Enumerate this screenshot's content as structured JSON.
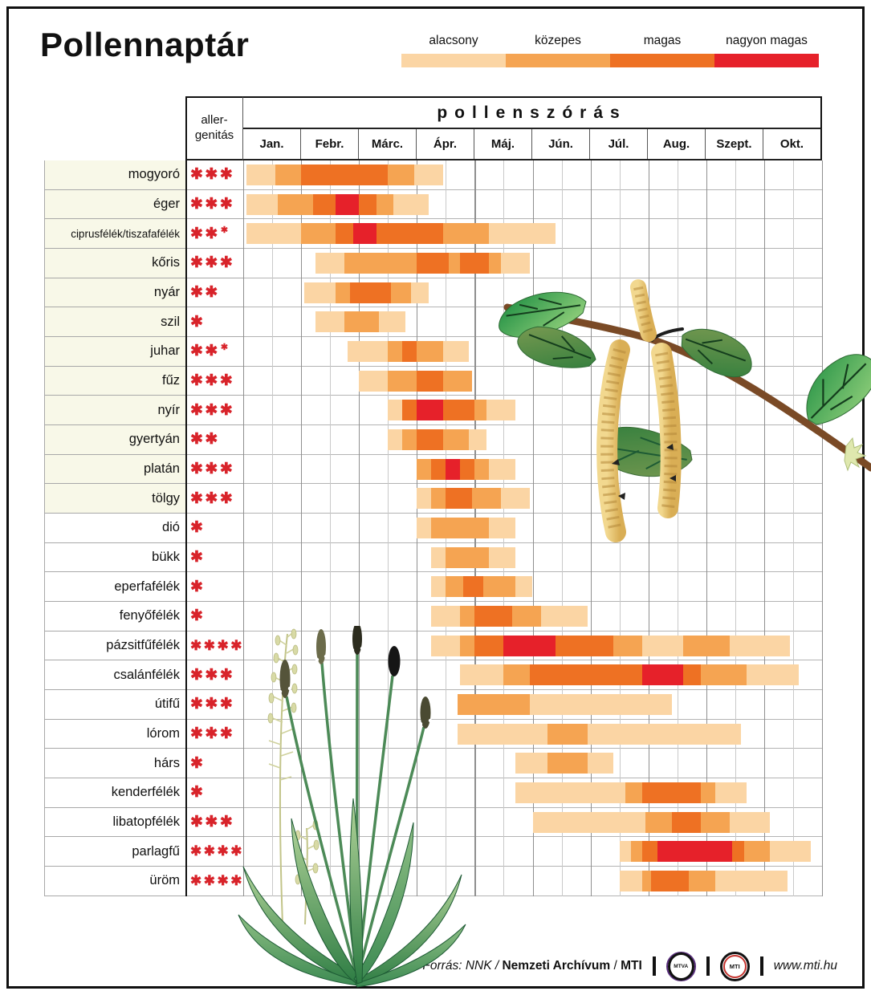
{
  "title": "Pollennaptár",
  "table": {
    "allergen_header_line1": "aller-",
    "allergen_header_line2": "genitás",
    "main_header": "pollenszórás"
  },
  "chart_data": {
    "type": "heatmap",
    "description": "Pollen calendar gantt-heatmap; segments are [start_month, end_month, level] with 0 = Jan 1, 10 = end of Oct",
    "months": [
      "Jan.",
      "Febr.",
      "Márc.",
      "Ápr.",
      "Máj.",
      "Jún.",
      "Júl.",
      "Aug.",
      "Szept.",
      "Okt."
    ],
    "levels": [
      {
        "value": 1,
        "label": "alacsony",
        "color": "#fbd5a4"
      },
      {
        "value": 2,
        "label": "közepes",
        "color": "#f5a452"
      },
      {
        "value": 3,
        "label": "magas",
        "color": "#ee7123"
      },
      {
        "value": 4,
        "label": "nagyon magas",
        "color": "#e6212a"
      }
    ],
    "rows": [
      {
        "name": "mogyoró",
        "stars": 3,
        "segments": [
          [
            0.05,
            0.55,
            1
          ],
          [
            0.55,
            1.0,
            2
          ],
          [
            1.0,
            2.5,
            3
          ],
          [
            2.5,
            2.95,
            2
          ],
          [
            2.95,
            3.45,
            1
          ]
        ]
      },
      {
        "name": "éger",
        "stars": 3,
        "segments": [
          [
            0.05,
            0.6,
            1
          ],
          [
            0.6,
            1.2,
            2
          ],
          [
            1.2,
            1.6,
            3
          ],
          [
            1.6,
            2.0,
            4
          ],
          [
            2.0,
            2.3,
            3
          ],
          [
            2.3,
            2.6,
            2
          ],
          [
            2.6,
            3.2,
            1
          ]
        ]
      },
      {
        "name": "ciprusfélék/tiszafafélék",
        "stars": 2.5,
        "segments": [
          [
            0.05,
            1.0,
            1
          ],
          [
            1.0,
            1.6,
            2
          ],
          [
            1.6,
            1.9,
            3
          ],
          [
            1.9,
            2.3,
            4
          ],
          [
            2.3,
            3.45,
            3
          ],
          [
            3.45,
            4.25,
            2
          ],
          [
            4.25,
            5.4,
            1
          ]
        ]
      },
      {
        "name": "kőris",
        "stars": 3,
        "segments": [
          [
            1.25,
            1.75,
            1
          ],
          [
            1.75,
            3.0,
            2
          ],
          [
            3.0,
            3.55,
            3
          ],
          [
            3.55,
            3.75,
            2
          ],
          [
            3.75,
            4.25,
            3
          ],
          [
            4.25,
            4.45,
            2
          ],
          [
            4.45,
            4.95,
            1
          ]
        ]
      },
      {
        "name": "nyár",
        "stars": 2,
        "segments": [
          [
            1.05,
            1.6,
            1
          ],
          [
            1.6,
            1.85,
            2
          ],
          [
            1.85,
            2.55,
            3
          ],
          [
            2.55,
            2.9,
            2
          ],
          [
            2.9,
            3.2,
            1
          ]
        ]
      },
      {
        "name": "szil",
        "stars": 1,
        "segments": [
          [
            1.25,
            1.75,
            1
          ],
          [
            1.75,
            2.35,
            2
          ],
          [
            2.35,
            2.8,
            1
          ]
        ]
      },
      {
        "name": "juhar",
        "stars": 2.5,
        "segments": [
          [
            1.8,
            2.5,
            1
          ],
          [
            2.5,
            2.75,
            2
          ],
          [
            2.75,
            3.0,
            3
          ],
          [
            3.0,
            3.45,
            2
          ],
          [
            3.45,
            3.9,
            1
          ]
        ]
      },
      {
        "name": "fűz",
        "stars": 3,
        "segments": [
          [
            2.0,
            2.5,
            1
          ],
          [
            2.5,
            3.0,
            2
          ],
          [
            3.0,
            3.45,
            3
          ],
          [
            3.45,
            3.95,
            2
          ]
        ]
      },
      {
        "name": "nyír",
        "stars": 3,
        "segments": [
          [
            2.5,
            2.75,
            1
          ],
          [
            2.75,
            3.0,
            3
          ],
          [
            3.0,
            3.45,
            4
          ],
          [
            3.45,
            4.0,
            3
          ],
          [
            4.0,
            4.2,
            2
          ],
          [
            4.2,
            4.7,
            1
          ]
        ]
      },
      {
        "name": "gyertyán",
        "stars": 2,
        "segments": [
          [
            2.5,
            2.75,
            1
          ],
          [
            2.75,
            3.0,
            2
          ],
          [
            3.0,
            3.45,
            3
          ],
          [
            3.45,
            3.9,
            2
          ],
          [
            3.9,
            4.2,
            1
          ]
        ]
      },
      {
        "name": "platán",
        "stars": 3,
        "segments": [
          [
            3.0,
            3.25,
            2
          ],
          [
            3.25,
            3.5,
            3
          ],
          [
            3.5,
            3.75,
            4
          ],
          [
            3.75,
            4.0,
            3
          ],
          [
            4.0,
            4.25,
            2
          ],
          [
            4.25,
            4.7,
            1
          ]
        ]
      },
      {
        "name": "tölgy",
        "stars": 3,
        "segments": [
          [
            3.0,
            3.25,
            1
          ],
          [
            3.25,
            3.5,
            2
          ],
          [
            3.5,
            3.95,
            3
          ],
          [
            3.95,
            4.45,
            2
          ],
          [
            4.45,
            4.95,
            1
          ]
        ]
      },
      {
        "name": "dió",
        "stars": 1,
        "segments": [
          [
            3.0,
            3.25,
            1
          ],
          [
            3.25,
            4.25,
            2
          ],
          [
            4.25,
            4.7,
            1
          ]
        ]
      },
      {
        "name": "bükk",
        "stars": 1,
        "segments": [
          [
            3.25,
            3.5,
            1
          ],
          [
            3.5,
            4.25,
            2
          ],
          [
            4.25,
            4.7,
            1
          ]
        ]
      },
      {
        "name": "eperfafélék",
        "stars": 1,
        "segments": [
          [
            3.25,
            3.5,
            1
          ],
          [
            3.5,
            3.8,
            2
          ],
          [
            3.8,
            4.15,
            3
          ],
          [
            4.15,
            4.7,
            2
          ],
          [
            4.7,
            5.0,
            1
          ]
        ]
      },
      {
        "name": "fenyőfélék",
        "stars": 1,
        "segments": [
          [
            3.25,
            3.75,
            1
          ],
          [
            3.75,
            4.0,
            2
          ],
          [
            4.0,
            4.65,
            3
          ],
          [
            4.65,
            5.15,
            2
          ],
          [
            5.15,
            5.95,
            1
          ]
        ]
      },
      {
        "name": "pázsitfűfélék",
        "stars": 4,
        "segments": [
          [
            3.25,
            3.75,
            1
          ],
          [
            3.75,
            4.0,
            2
          ],
          [
            4.0,
            4.5,
            3
          ],
          [
            4.5,
            5.4,
            4
          ],
          [
            5.4,
            6.4,
            3
          ],
          [
            6.4,
            6.9,
            2
          ],
          [
            6.9,
            7.6,
            1
          ],
          [
            7.6,
            8.4,
            2
          ],
          [
            8.4,
            9.45,
            1
          ]
        ]
      },
      {
        "name": "csalánfélék",
        "stars": 3,
        "segments": [
          [
            3.75,
            4.5,
            1
          ],
          [
            4.5,
            4.95,
            2
          ],
          [
            4.95,
            6.9,
            3
          ],
          [
            6.9,
            7.6,
            4
          ],
          [
            7.6,
            7.9,
            3
          ],
          [
            7.9,
            8.7,
            2
          ],
          [
            8.7,
            9.6,
            1
          ]
        ]
      },
      {
        "name": "útifű",
        "stars": 3,
        "segments": [
          [
            3.7,
            4.95,
            2
          ],
          [
            4.95,
            7.4,
            1
          ]
        ]
      },
      {
        "name": "lórom",
        "stars": 3,
        "segments": [
          [
            3.7,
            5.25,
            1
          ],
          [
            5.25,
            5.95,
            2
          ],
          [
            5.95,
            8.6,
            1
          ]
        ]
      },
      {
        "name": "hárs",
        "stars": 1,
        "segments": [
          [
            4.7,
            5.25,
            1
          ],
          [
            5.25,
            5.95,
            2
          ],
          [
            5.95,
            6.4,
            1
          ]
        ]
      },
      {
        "name": "kenderfélék",
        "stars": 1,
        "segments": [
          [
            4.7,
            6.6,
            1
          ],
          [
            6.6,
            6.9,
            2
          ],
          [
            6.9,
            7.9,
            3
          ],
          [
            7.9,
            8.15,
            2
          ],
          [
            8.15,
            8.7,
            1
          ]
        ]
      },
      {
        "name": "libatopfélék",
        "stars": 3,
        "segments": [
          [
            5.0,
            6.95,
            1
          ],
          [
            6.95,
            7.4,
            2
          ],
          [
            7.4,
            7.9,
            3
          ],
          [
            7.9,
            8.4,
            2
          ],
          [
            8.4,
            9.1,
            1
          ]
        ]
      },
      {
        "name": "parlagfű",
        "stars": 4,
        "segments": [
          [
            6.5,
            6.7,
            1
          ],
          [
            6.7,
            6.9,
            2
          ],
          [
            6.9,
            7.15,
            3
          ],
          [
            7.15,
            8.45,
            4
          ],
          [
            8.45,
            8.65,
            3
          ],
          [
            8.65,
            9.1,
            2
          ],
          [
            9.1,
            9.8,
            1
          ]
        ]
      },
      {
        "name": "üröm",
        "stars": 4,
        "segments": [
          [
            6.5,
            6.9,
            1
          ],
          [
            6.9,
            7.05,
            2
          ],
          [
            7.05,
            7.7,
            3
          ],
          [
            7.7,
            8.15,
            2
          ],
          [
            8.15,
            9.4,
            1
          ]
        ]
      }
    ]
  },
  "footer": {
    "source_italic": "Forrás: NNK /",
    "source_bold": "Nemzeti Archívum",
    "separator": "/",
    "agency_bold": "MTI",
    "logo_mtva": "MTVA",
    "logo_mti": "MTI",
    "website": "www.mti.hu"
  },
  "illustrations": [
    "birch-branch-with-catkins",
    "plantain-plant",
    "grass-sprigs"
  ]
}
